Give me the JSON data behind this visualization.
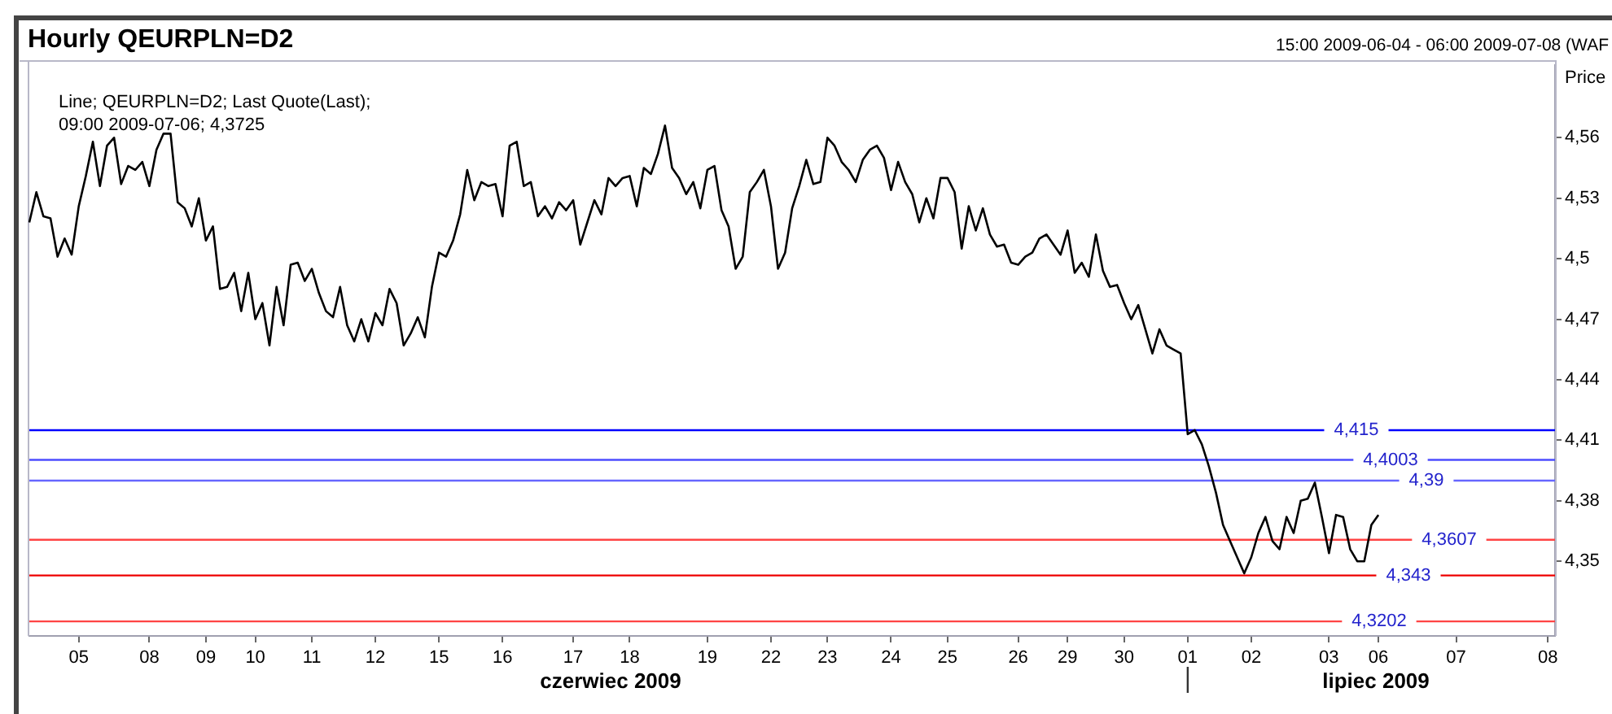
{
  "chart_data": {
    "type": "line",
    "title": "Hourly QEURPLN=D2",
    "subtitle": "15:00 2009-06-04 - 06:00 2009-07-08 (WAF",
    "ylabel": "Price",
    "annotations": [
      "Line; QEURPLN=D2; Last Quote(Last);",
      "09:00 2009-07-06; 4,3725",
      "czerwiec 2009",
      "lipiec 2009"
    ],
    "categories": [
      null,
      null,
      null,
      null,
      null,
      null,
      null,
      "05",
      null,
      null,
      null,
      null,
      null,
      null,
      null,
      null,
      null,
      "08",
      null,
      null,
      null,
      null,
      null,
      null,
      null,
      "09",
      null,
      null,
      null,
      null,
      null,
      null,
      "10",
      null,
      null,
      null,
      null,
      null,
      null,
      null,
      "11",
      null,
      null,
      null,
      null,
      null,
      null,
      null,
      null,
      "12",
      null,
      null,
      null,
      null,
      null,
      null,
      null,
      null,
      "15",
      null,
      null,
      null,
      null,
      null,
      null,
      null,
      null,
      "16",
      null,
      null,
      null,
      null,
      null,
      null,
      null,
      null,
      null,
      "17",
      null,
      null,
      null,
      null,
      null,
      null,
      null,
      "18",
      null,
      null,
      null,
      null,
      null,
      null,
      null,
      null,
      null,
      null,
      "19",
      null,
      null,
      null,
      null,
      null,
      null,
      null,
      null,
      "22",
      null,
      null,
      null,
      null,
      null,
      null,
      null,
      "23",
      null,
      null,
      null,
      null,
      null,
      null,
      null,
      null,
      "24",
      null,
      null,
      null,
      null,
      null,
      null,
      null,
      "25",
      null,
      null,
      null,
      null,
      null,
      null,
      null,
      null,
      null,
      "26",
      null,
      null,
      null,
      null,
      null,
      null,
      "29",
      null,
      null,
      null,
      null,
      null,
      null,
      null,
      "30",
      null,
      null,
      null,
      null,
      null,
      null,
      null,
      null,
      "01",
      null,
      null,
      null,
      null,
      null,
      null,
      null,
      null,
      "02",
      null,
      null,
      null,
      null,
      null,
      null,
      null,
      null,
      null,
      null,
      "03",
      null,
      null,
      null,
      null,
      null,
      null,
      "06",
      null,
      null,
      null,
      null,
      null,
      null,
      null,
      null,
      null,
      null,
      "07",
      null,
      null,
      null,
      null,
      null,
      null,
      null,
      null,
      null,
      null,
      null,
      null,
      "08",
      null
    ],
    "ylim": [
      4.313,
      4.596
    ],
    "yticks": [
      {
        "value": 4.35,
        "label": "4,35"
      },
      {
        "value": 4.38,
        "label": "4,38"
      },
      {
        "value": 4.41,
        "label": "4,41"
      },
      {
        "value": 4.44,
        "label": "4,44"
      },
      {
        "value": 4.47,
        "label": "4,47"
      },
      {
        "value": 4.5,
        "label": "4,5"
      },
      {
        "value": 4.53,
        "label": "4,53"
      },
      {
        "value": 4.56,
        "label": "4,56"
      }
    ],
    "grid": false,
    "legend": false,
    "marker": "none",
    "line_style": "solid",
    "ref_lines": [
      {
        "axis": "y",
        "value": 4.415,
        "label": "4,415",
        "color": "#0000ff"
      },
      {
        "axis": "y",
        "value": 4.4003,
        "label": "4,4003",
        "color": "#4d4dff"
      },
      {
        "axis": "y",
        "value": 4.39,
        "label": "4,39",
        "color": "#6666ff"
      },
      {
        "axis": "y",
        "value": 4.3607,
        "label": "4,3607",
        "color": "#ff4444"
      },
      {
        "axis": "y",
        "value": 4.343,
        "label": "4,343",
        "color": "#ee0000"
      },
      {
        "axis": "y",
        "value": 4.3202,
        "label": "4,3202",
        "color": "#ff4444"
      }
    ],
    "series": [
      {
        "color": "#000000",
        "values": [
          4.518,
          4.533,
          4.521,
          4.52,
          4.501,
          4.51,
          4.502,
          4.526,
          4.541,
          4.558,
          4.536,
          4.556,
          4.56,
          4.537,
          4.546,
          4.544,
          4.548,
          4.536,
          4.554,
          4.562,
          4.562,
          4.528,
          4.525,
          4.516,
          4.53,
          4.509,
          4.516,
          4.485,
          4.486,
          4.493,
          4.474,
          4.493,
          4.47,
          4.478,
          4.457,
          4.486,
          4.467,
          4.497,
          4.498,
          4.489,
          4.495,
          4.483,
          4.474,
          4.471,
          4.486,
          4.467,
          4.459,
          4.47,
          4.459,
          4.473,
          4.467,
          4.485,
          4.478,
          4.457,
          4.463,
          4.471,
          4.461,
          4.486,
          4.503,
          4.501,
          4.509,
          4.522,
          4.544,
          4.529,
          4.538,
          4.536,
          4.537,
          4.521,
          4.556,
          4.558,
          4.536,
          4.538,
          4.521,
          4.526,
          4.52,
          4.528,
          4.524,
          4.529,
          4.507,
          4.518,
          4.529,
          4.522,
          4.54,
          4.536,
          4.54,
          4.541,
          4.526,
          4.545,
          4.542,
          4.552,
          4.566,
          4.545,
          4.54,
          4.532,
          4.538,
          4.525,
          4.544,
          4.546,
          4.524,
          4.516,
          4.495,
          4.501,
          4.533,
          4.538,
          4.544,
          4.526,
          4.495,
          4.503,
          4.525,
          4.536,
          4.549,
          4.537,
          4.538,
          4.56,
          4.556,
          4.548,
          4.544,
          4.538,
          4.549,
          4.554,
          4.556,
          4.55,
          4.534,
          4.548,
          4.538,
          4.532,
          4.518,
          4.53,
          4.52,
          4.54,
          4.54,
          4.533,
          4.505,
          4.526,
          4.514,
          4.525,
          4.512,
          4.506,
          4.507,
          4.498,
          4.497,
          4.501,
          4.503,
          4.51,
          4.512,
          4.507,
          4.502,
          4.514,
          4.493,
          4.498,
          4.491,
          4.512,
          4.494,
          4.486,
          4.487,
          4.478,
          4.47,
          4.477,
          4.465,
          4.453,
          4.465,
          4.457,
          4.455,
          4.453,
          4.413,
          4.415,
          4.408,
          4.397,
          4.384,
          4.368,
          4.36,
          4.352,
          4.344,
          4.352,
          4.364,
          4.372,
          4.36,
          4.356,
          4.372,
          4.364,
          4.38,
          4.381,
          4.389,
          4.372,
          4.354,
          4.373,
          4.372,
          4.356,
          4.35,
          4.35,
          4.368,
          4.373,
          null,
          null,
          null,
          null,
          null,
          null,
          null,
          null,
          null,
          null,
          null,
          null,
          null,
          null,
          null,
          null,
          null,
          null,
          null,
          null,
          null,
          null,
          null,
          null,
          null
        ]
      }
    ]
  }
}
